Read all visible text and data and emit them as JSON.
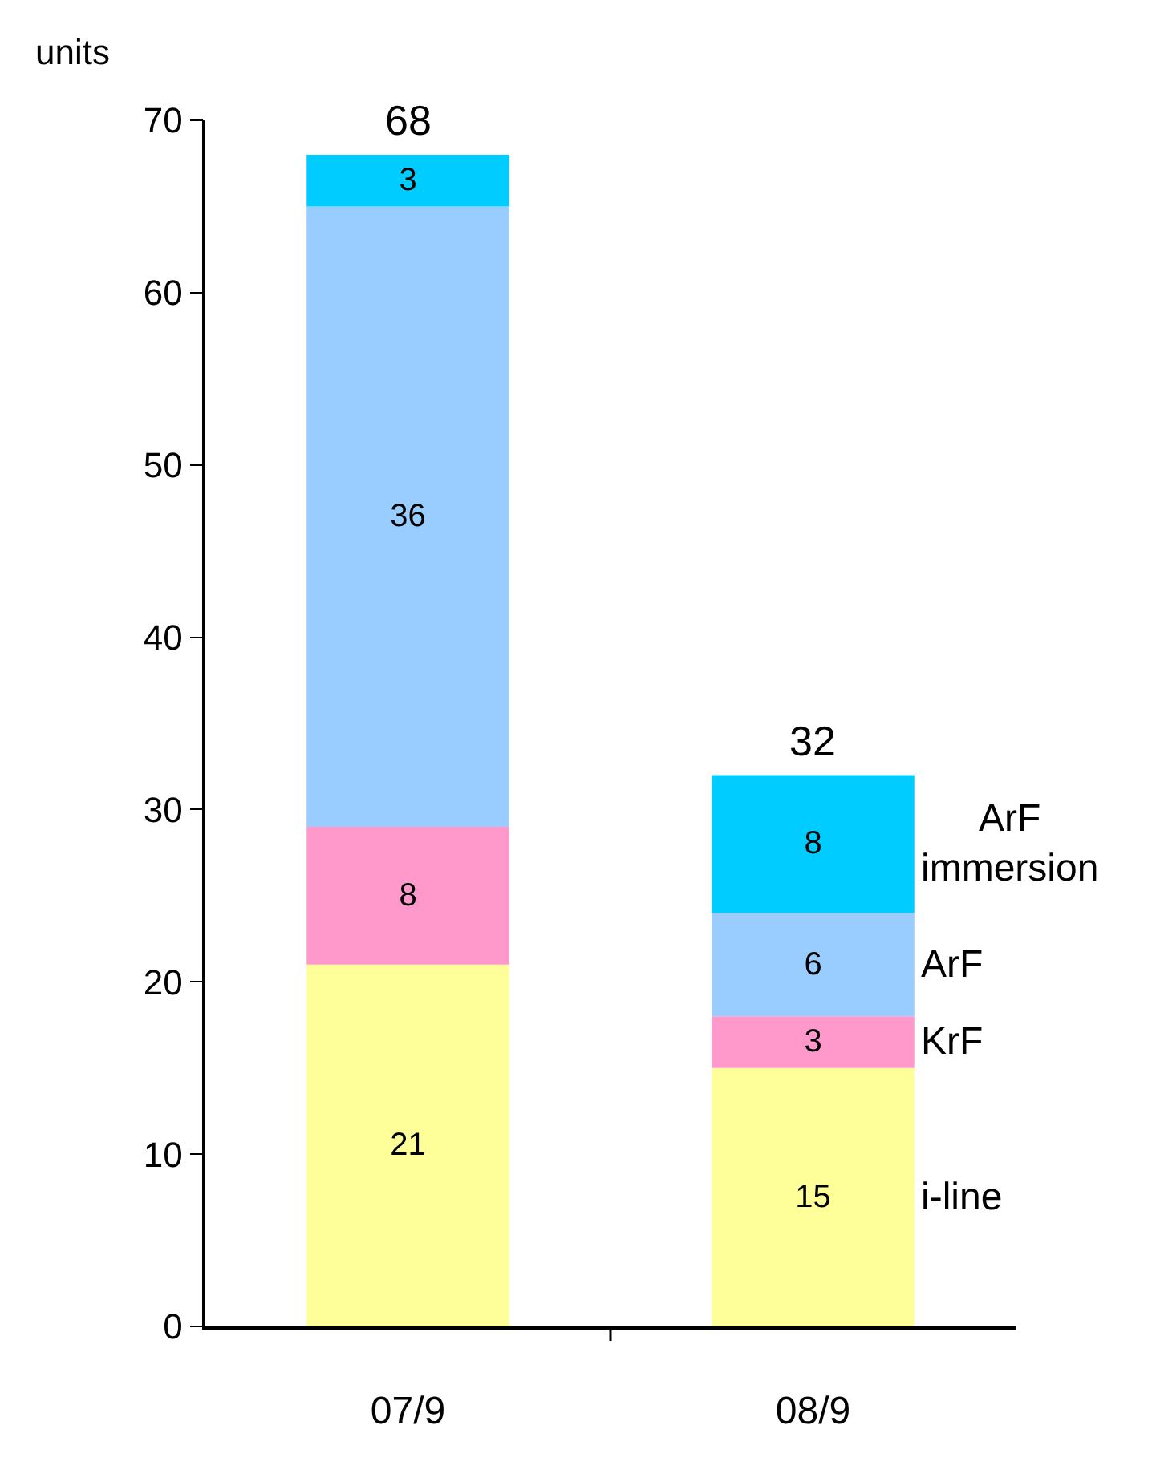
{
  "chart_data": {
    "type": "bar",
    "stacked": true,
    "ylabel": "units",
    "categories": [
      "07/9",
      "08/9"
    ],
    "series": [
      {
        "name": "i-line",
        "color": "#ffff99",
        "values": [
          21,
          15
        ]
      },
      {
        "name": "KrF",
        "color": "#ff99cc",
        "values": [
          8,
          3
        ]
      },
      {
        "name": "ArF",
        "color": "#99ccff",
        "values": [
          36,
          6
        ]
      },
      {
        "name": "ArF immersion",
        "color": "#00ccff",
        "values": [
          3,
          8
        ]
      }
    ],
    "data_labels": true,
    "totals": [
      "68",
      "32"
    ],
    "ylim": [
      0,
      70
    ],
    "yticks": [
      0,
      10,
      20,
      30,
      40,
      50,
      60,
      70
    ]
  }
}
